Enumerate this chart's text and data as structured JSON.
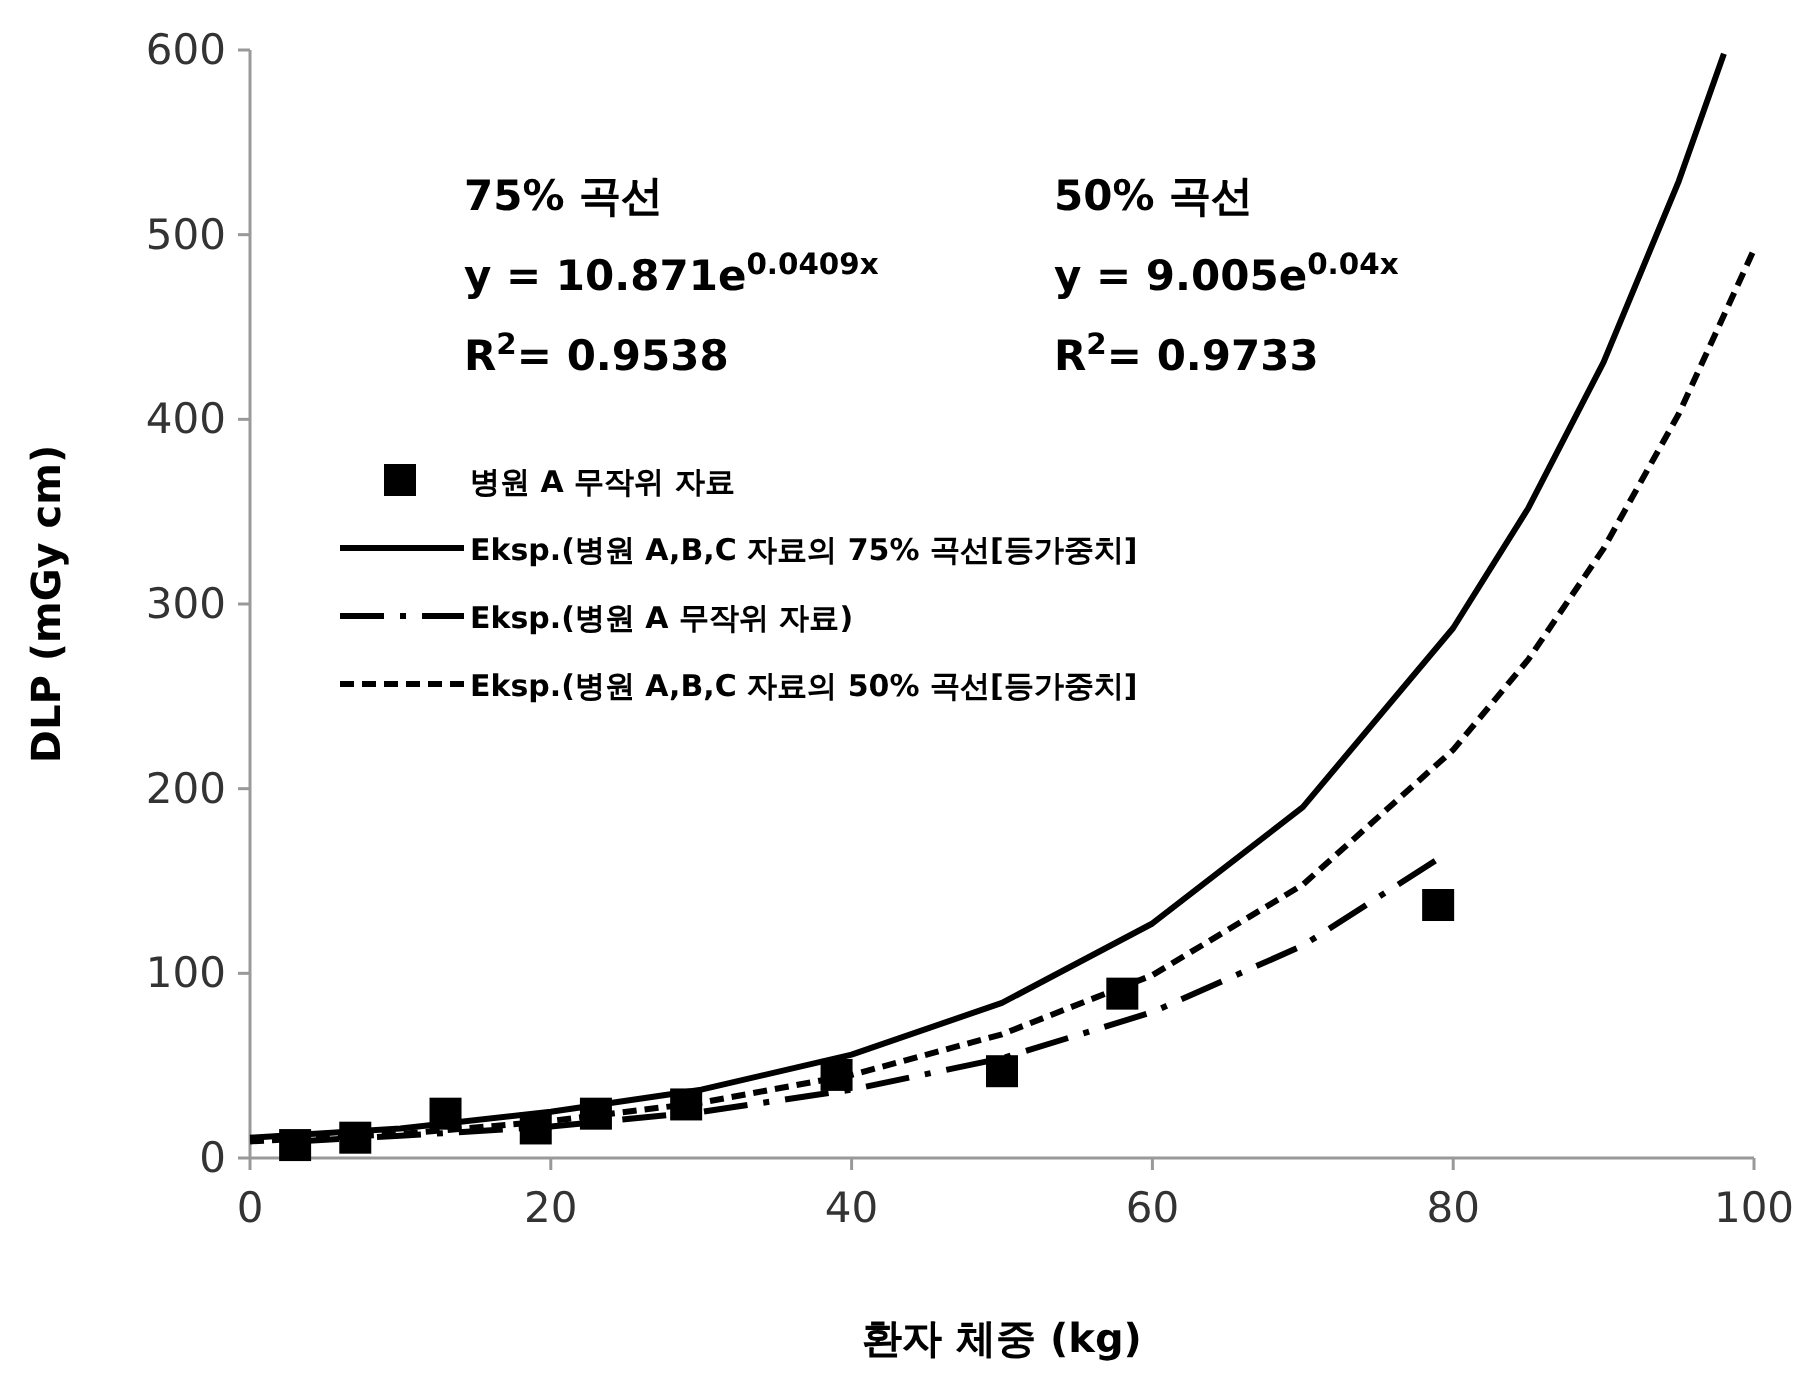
{
  "chart_data": {
    "type": "line",
    "xlabel": "환자 체중 (kg)",
    "ylabel": "DLP (mGy cm)",
    "xlim": [
      0,
      100
    ],
    "xticks": [
      0,
      20,
      40,
      60,
      80,
      100
    ],
    "ylim": [
      0,
      600
    ],
    "yticks": [
      0,
      100,
      200,
      300,
      400,
      500,
      600
    ],
    "grid": false,
    "legend": "left",
    "annotations": [
      "75% 곡선",
      "y = 10.871e$^{0.0409x}$",
      "R$^{2}$= 0.9538",
      "50% 곡선",
      "y = 9.005e$^{0.04x}$",
      "R$^{2}$= 0.9733"
    ],
    "series": [
      {
        "name": "병원 A 무작위 자료",
        "type": "scatter",
        "marker": "square",
        "color": "#000000",
        "x": [
          3,
          7,
          13,
          19,
          23,
          29,
          39,
          50,
          58,
          79
        ],
        "values": [
          7,
          11,
          24,
          16,
          24,
          29,
          45,
          47,
          89,
          137
        ]
      },
      {
        "name": "Eksp.(병원 A,B,C 자료의 75% 곡선[등가중치]",
        "line_style": "solid",
        "color": "#000000",
        "x": [
          0,
          10,
          20,
          30,
          40,
          50,
          60,
          70,
          80,
          85,
          90,
          95,
          98
        ],
        "values": [
          11,
          16,
          25,
          37,
          56,
          84,
          127,
          190,
          287,
          352,
          431,
          529,
          598
        ]
      },
      {
        "name": "Eksp.(병원 A 무작위 자료)",
        "line_style": "dashdot",
        "color": "#000000",
        "x": [
          3,
          10,
          20,
          30,
          40,
          50,
          60,
          70,
          79
        ],
        "values": [
          9,
          12,
          17,
          25,
          37,
          54,
          79,
          115,
          162
        ]
      },
      {
        "name": "Eksp.(병원 A,B,C 자료의 50% 곡선[등가중치]",
        "line_style": "dashed",
        "color": "#000000",
        "x": [
          0,
          10,
          20,
          30,
          40,
          50,
          60,
          70,
          80,
          85,
          90,
          95,
          100
        ],
        "values": [
          9,
          13,
          20,
          30,
          45,
          67,
          99,
          148,
          221,
          270,
          330,
          403,
          492
        ]
      }
    ]
  }
}
